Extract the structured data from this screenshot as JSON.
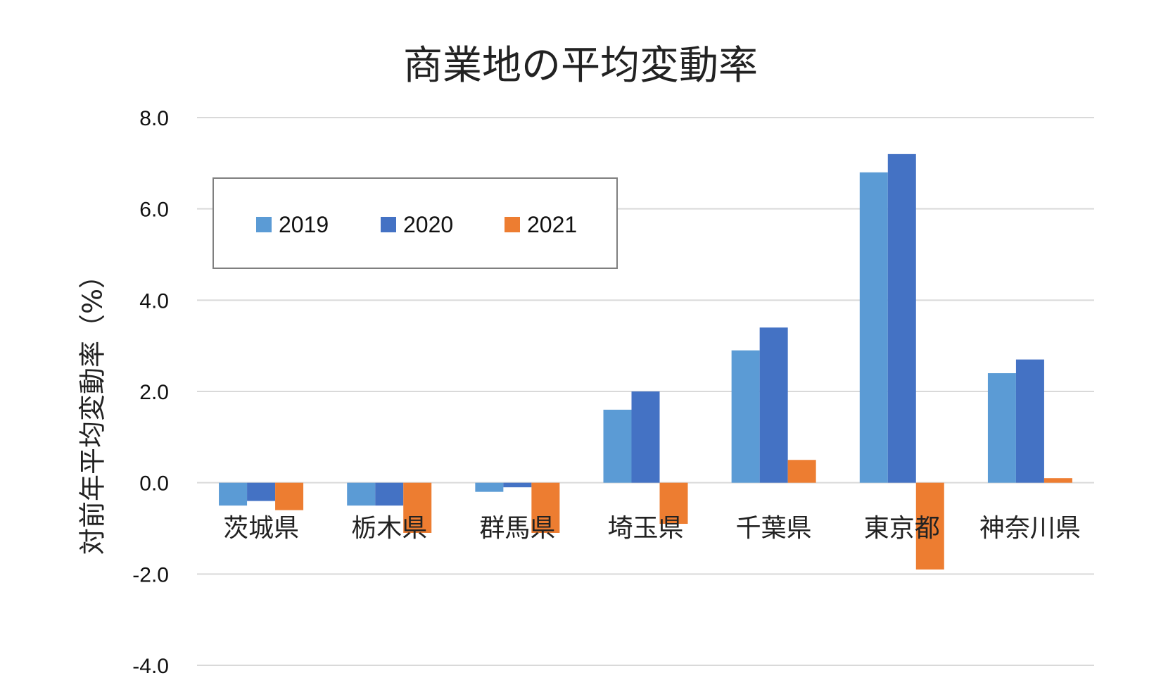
{
  "chart_data": {
    "type": "bar",
    "title": "商業地の平均変動率",
    "xlabel": "",
    "ylabel": "対前年平均変動率（%）",
    "ylim": [
      -4.0,
      8.0
    ],
    "yticks": [
      "8.0",
      "6.0",
      "4.0",
      "2.0",
      "0.0",
      "-2.0",
      "-4.0"
    ],
    "ytick_values": [
      8,
      6,
      4,
      2,
      0,
      -2,
      -4
    ],
    "grid": true,
    "legend_position": "top-left",
    "categories": [
      "茨城県",
      "栃木県",
      "群馬県",
      "埼玉県",
      "千葉県",
      "東京都",
      "神奈川県"
    ],
    "series": [
      {
        "name": "2019",
        "color": "#5b9bd5",
        "values": [
          -0.5,
          -0.5,
          -0.2,
          1.6,
          2.9,
          6.8,
          2.4
        ]
      },
      {
        "name": "2020",
        "color": "#4472c4",
        "values": [
          -0.4,
          -0.5,
          -0.1,
          2.0,
          3.4,
          7.2,
          2.7
        ]
      },
      {
        "name": "2021",
        "color": "#ed7d31",
        "values": [
          -0.6,
          -1.1,
          -1.1,
          -0.9,
          0.5,
          -1.9,
          0.1
        ]
      }
    ]
  }
}
